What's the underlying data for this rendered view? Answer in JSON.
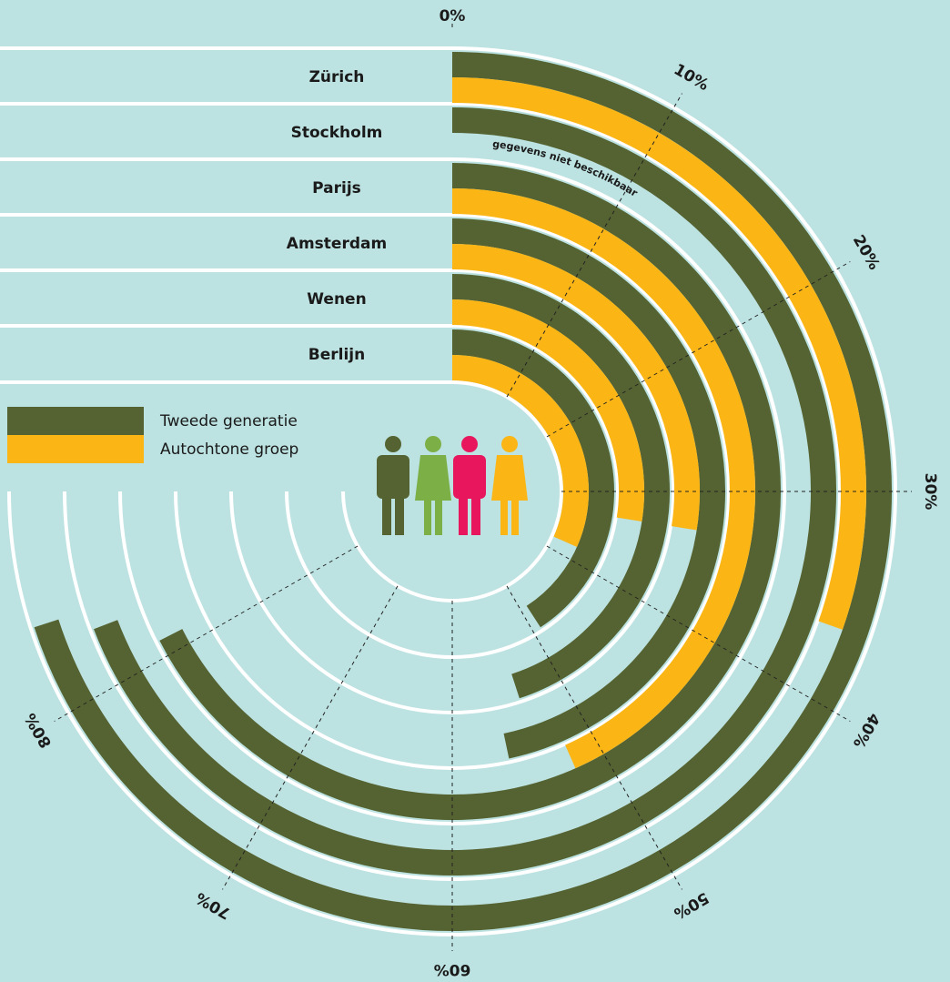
{
  "chart_data": {
    "type": "radial-bar",
    "categories": [
      "Zürich",
      "Stockholm",
      "Parijs",
      "Amsterdam",
      "Wenen",
      "Berlijn"
    ],
    "series": [
      {
        "name": "Tweede generatie",
        "color": "#556231",
        "values": [
          84,
          83,
          81,
          56,
          54,
          49
        ]
      },
      {
        "name": "Autochtone groep",
        "color": "#fbb616",
        "values": [
          36.5,
          null,
          52,
          33,
          33,
          38
        ]
      }
    ],
    "xlim": [
      0,
      120
    ],
    "xticks": [
      {
        "value": 0,
        "label": "0%"
      },
      {
        "value": 10,
        "label": "10%"
      },
      {
        "value": 20,
        "label": "20%"
      },
      {
        "value": 30,
        "label": "30%"
      },
      {
        "value": 40,
        "label": "40%"
      },
      {
        "value": 50,
        "label": "50%"
      },
      {
        "value": 60,
        "label": "60%"
      },
      {
        "value": 70,
        "label": "70%"
      },
      {
        "value": 80,
        "label": "80%"
      }
    ],
    "annotation": "gegevens niet beschikbaar"
  }
}
